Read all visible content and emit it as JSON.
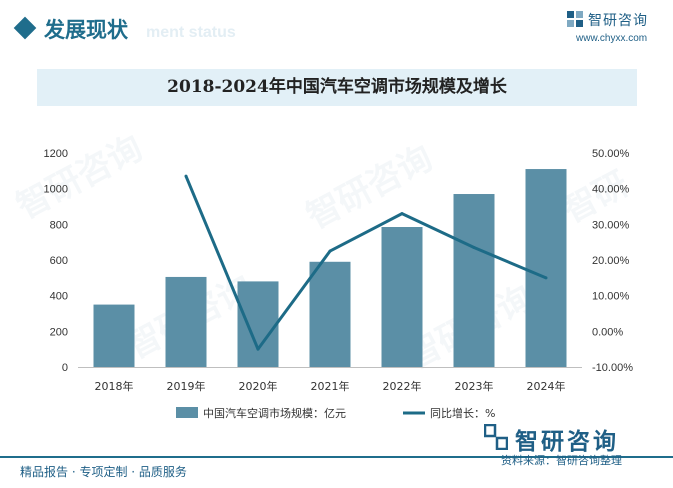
{
  "header": {
    "section_title": "发展现状",
    "section_subtitle": "ment status",
    "brand_name": "智研咨询",
    "brand_url": "www.chyxx.com"
  },
  "chart_data": {
    "type": "bar",
    "title": "2018-2024年中国汽车空调市场规模及增长",
    "categories": [
      "2018年",
      "2019年",
      "2020年",
      "2021年",
      "2022年",
      "2023年",
      "2024年"
    ],
    "series": [
      {
        "name": "中国汽车空调市场规模：亿元",
        "type": "bar",
        "axis": "left",
        "color": "#5b8fa6",
        "values": [
          350,
          505,
          480,
          590,
          785,
          970,
          1110
        ]
      },
      {
        "name": "同比增长：%",
        "type": "line",
        "axis": "right",
        "color": "#1d6b87",
        "values": [
          null,
          43.5,
          -5.0,
          22.5,
          33.0,
          23.5,
          15.0
        ]
      }
    ],
    "y_left": {
      "min": 0,
      "max": 1200,
      "step": 200,
      "ticks": [
        "0",
        "200",
        "400",
        "600",
        "800",
        "1000",
        "1200"
      ]
    },
    "y_right": {
      "min": -10,
      "max": 50,
      "step": 10,
      "ticks": [
        "-10.00%",
        "0.00%",
        "10.00%",
        "20.00%",
        "30.00%",
        "40.00%",
        "50.00%"
      ]
    },
    "legend_position": "bottom",
    "grid": false
  },
  "footer": {
    "left_text": "精品报告 · 专项定制 · 品质服务",
    "brand_name": "智研咨询",
    "source_text": "资料来源：智研咨询整理"
  }
}
